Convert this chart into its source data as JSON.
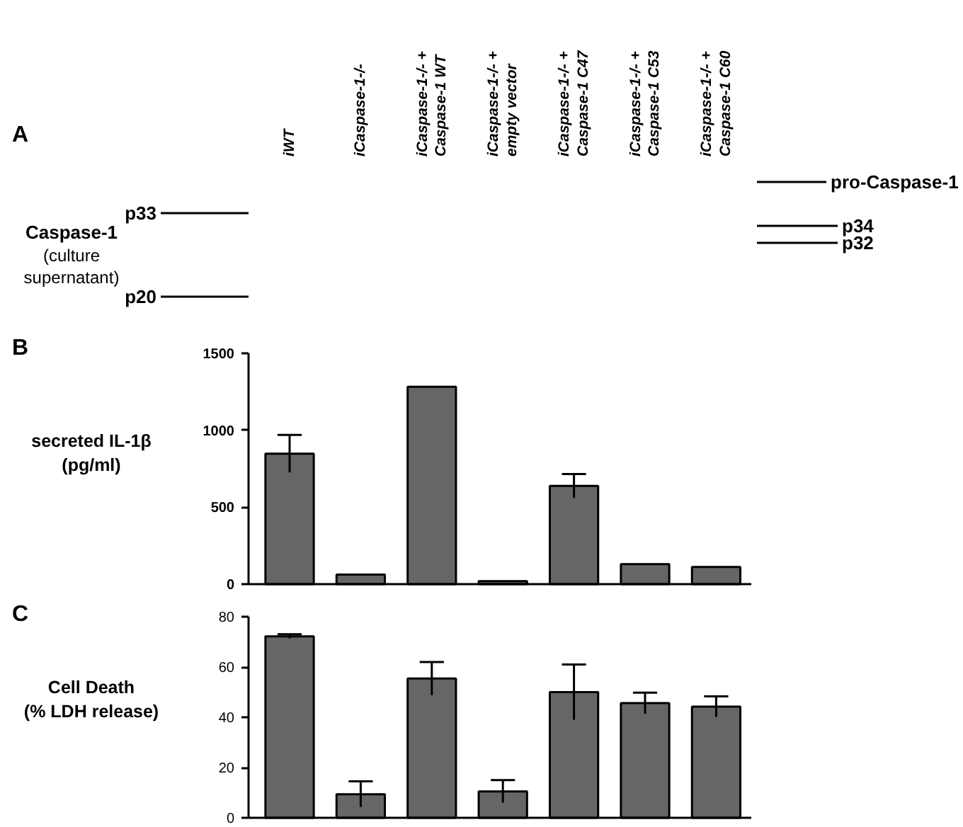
{
  "chart_data": [
    {
      "type": "other",
      "title": "A",
      "annotations": [
        "iWT",
        "iCaspase-1-/-",
        "iCaspase-1-/- +\nCaspase-1 WT",
        "iCaspase-1-/- +\nempty vector",
        "iCaspase-1-/- +\nCaspase-1 C47",
        "iCaspase-1-/- +\nCaspase-1 C53",
        "iCaspase-1-/- +\nCaspase-1 C60",
        "Caspase-1",
        "(culture\nsupernatant)",
        "p33",
        "p20",
        "pro-Caspase-1",
        "p34",
        "p32"
      ]
    },
    {
      "type": "bar",
      "annotations": [
        "B"
      ],
      "ylabel": "secreted IL-1β\n(pg/ml)",
      "categories": [
        null,
        null,
        null,
        null,
        null,
        null,
        null
      ],
      "values": [
        848,
        62,
        1283,
        20,
        638,
        130,
        112
      ],
      "errors": [
        122,
        null,
        null,
        null,
        78,
        null,
        null
      ],
      "color": "#666666",
      "ylim": [
        0,
        1500
      ],
      "yticks": [
        0,
        500,
        1000,
        1500
      ],
      "tick_labels": "y",
      "grid": false,
      "legend": false
    },
    {
      "type": "bar",
      "annotations": [
        "C"
      ],
      "ylabel": "Cell Death\n(% LDH release)",
      "categories": [
        null,
        null,
        null,
        null,
        null,
        null,
        null
      ],
      "values": [
        72.2,
        9.4,
        55.4,
        10.5,
        50,
        45.6,
        44.2
      ],
      "errors": [
        0.8,
        5.1,
        6.6,
        4.5,
        11,
        4.2,
        4.1
      ],
      "color": "#666666",
      "ylim": [
        0,
        80
      ],
      "yticks": [
        0,
        20,
        40,
        60,
        80
      ],
      "tick_labels": "y",
      "grid": false,
      "legend": false
    }
  ]
}
